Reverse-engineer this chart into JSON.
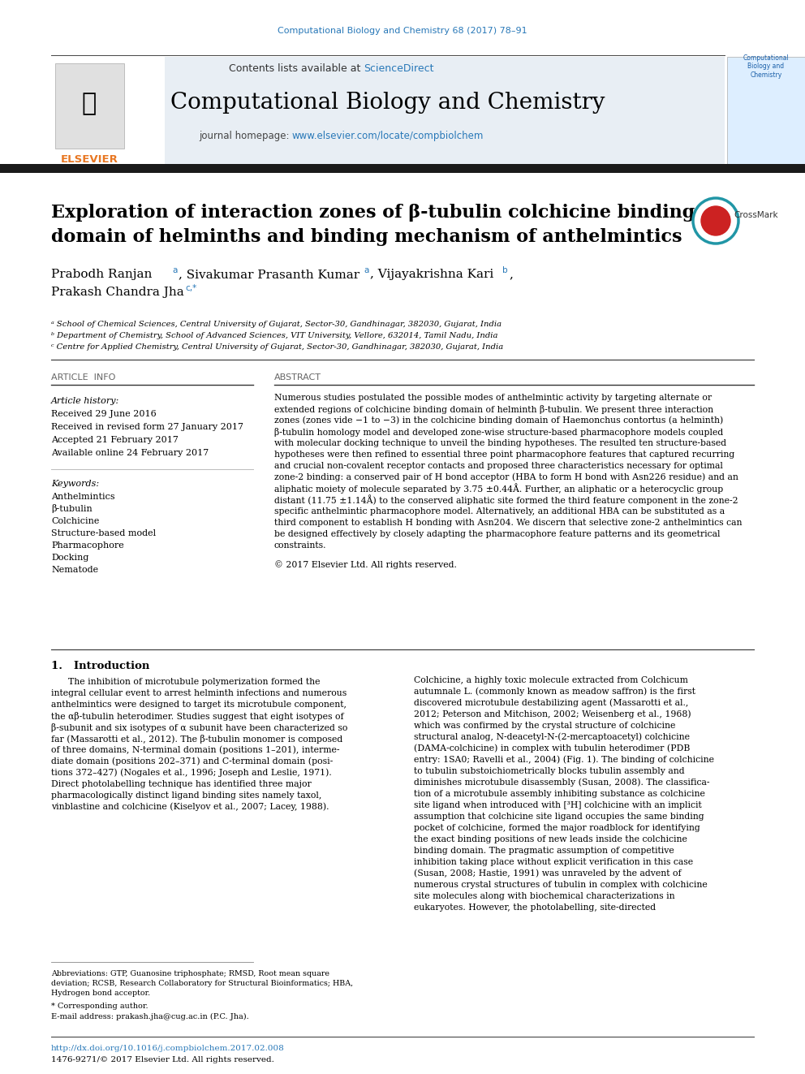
{
  "journal_ref": "Computational Biology and Chemistry 68 (2017) 78–91",
  "header_sciencedirect": "ScienceDirect",
  "journal_title": "Computational Biology and Chemistry",
  "journal_homepage_link": "www.elsevier.com/locate/compbiolchem",
  "article_title_line1": "Exploration of interaction zones of β-tubulin colchicine binding",
  "article_title_line2": "domain of helminths and binding mechanism of anthelmintics",
  "affil_a": "ᵃ School of Chemical Sciences, Central University of Gujarat, Sector-30, Gandhinagar, 382030, Gujarat, India",
  "affil_b": "ᵇ Department of Chemistry, School of Advanced Sciences, VIT University, Vellore, 632014, Tamil Nadu, India",
  "affil_c": "ᶜ Centre for Applied Chemistry, Central University of Gujarat, Sector-30, Gandhinagar, 382030, Gujarat, India",
  "section_article_info": "ARTICLE  INFO",
  "section_abstract": "ABSTRACT",
  "article_history_label": "Article history:",
  "received": "Received 29 June 2016",
  "revised": "Received in revised form 27 January 2017",
  "accepted": "Accepted 21 February 2017",
  "available": "Available online 24 February 2017",
  "keywords_label": "Keywords:",
  "keywords": [
    "Anthelmintics",
    "β-tubulin",
    "Colchicine",
    "Structure-based model",
    "Pharmacophore",
    "Docking",
    "Nematode"
  ],
  "abstract_text_lines": [
    "Numerous studies postulated the possible modes of anthelmintic activity by targeting alternate or",
    "extended regions of colchicine binding domain of helminth β-tubulin. We present three interaction",
    "zones (zones vide −1 to −3) in the colchicine binding domain of Haemonchus contortus (a helminth)",
    "β-tubulin homology model and developed zone-wise structure-based pharmacophore models coupled",
    "with molecular docking technique to unveil the binding hypotheses. The resulted ten structure-based",
    "hypotheses were then refined to essential three point pharmacophore features that captured recurring",
    "and crucial non-covalent receptor contacts and proposed three characteristics necessary for optimal",
    "zone-2 binding: a conserved pair of H bond acceptor (HBA to form H bond with Asn226 residue) and an",
    "aliphatic moiety of molecule separated by 3.75 ±0.44Å. Further, an aliphatic or a heterocyclic group",
    "distant (11.75 ±1.14Å) to the conserved aliphatic site formed the third feature component in the zone-2",
    "specific anthelmintic pharmacophore model. Alternatively, an additional HBA can be substituted as a",
    "third component to establish H bonding with Asn204. We discern that selective zone-2 anthelmintics can",
    "be designed effectively by closely adapting the pharmacophore feature patterns and its geometrical",
    "constraints."
  ],
  "copyright": "© 2017 Elsevier Ltd. All rights reserved.",
  "intro_heading": "1.   Introduction",
  "intro_left_lines": [
    "      The inhibition of microtubule polymerization formed the",
    "integral cellular event to arrest helminth infections and numerous",
    "anthelmintics were designed to target its microtubule component,",
    "the αβ-tubulin heterodimer. Studies suggest that eight isotypes of",
    "β-subunit and six isotypes of α subunit have been characterized so",
    "far (Massarotti et al., 2012). The β-tubulin monomer is composed",
    "of three domains, N-terminal domain (positions 1–201), interme-",
    "diate domain (positions 202–371) and C-terminal domain (posi-",
    "tions 372–427) (Nogales et al., 1996; Joseph and Leslie, 1971).",
    "Direct photolabelling technique has identified three major",
    "pharmacologically distinct ligand binding sites namely taxol,",
    "vinblastine and colchicine (Kiselyov et al., 2007; Lacey, 1988)."
  ],
  "intro_right_lines": [
    "Colchicine, a highly toxic molecule extracted from Colchicum",
    "autumnale L. (commonly known as meadow saffron) is the first",
    "discovered microtubule destabilizing agent (Massarotti et al.,",
    "2012; Peterson and Mitchison, 2002; Weisenberg et al., 1968)",
    "which was confirmed by the crystal structure of colchicine",
    "structural analog, N-deacetyl-N-(2-mercaptoacetyl) colchicine",
    "(DAMA-colchicine) in complex with tubulin heterodimer (PDB",
    "entry: 1SA0; Ravelli et al., 2004) (Fig. 1). The binding of colchicine",
    "to tubulin substoichiometrically blocks tubulin assembly and",
    "diminishes microtubule disassembly (Susan, 2008). The classifica-",
    "tion of a microtubule assembly inhibiting substance as colchicine",
    "site ligand when introduced with [³H] colchicine with an implicit",
    "assumption that colchicine site ligand occupies the same binding",
    "pocket of colchicine, formed the major roadblock for identifying",
    "the exact binding positions of new leads inside the colchicine",
    "binding domain. The pragmatic assumption of competitive",
    "inhibition taking place without explicit verification in this case",
    "(Susan, 2008; Hastie, 1991) was unraveled by the advent of",
    "numerous crystal structures of tubulin in complex with colchicine",
    "site molecules along with biochemical characterizations in",
    "eukaryotes. However, the photolabelling, site-directed"
  ],
  "footnote_abbrev_lines": [
    "Abbreviations: GTP, Guanosine triphosphate; RMSD, Root mean square",
    "deviation; RCSB, Research Collaboratory for Structural Bioinformatics; HBA,",
    "Hydrogen bond acceptor."
  ],
  "footnote_corresponding": "* Corresponding author.",
  "footnote_email": "E-mail address: prakash.jha@cug.ac.in (P.C. Jha).",
  "footer_doi": "http://dx.doi.org/10.1016/j.compbiolchem.2017.02.008",
  "footer_issn": "1476-9271/© 2017 Elsevier Ltd. All rights reserved.",
  "bg_color": "#ffffff",
  "header_bg": "#e8eef4",
  "black_bar_color": "#1a1a1a",
  "blue_link_color": "#2878b8",
  "orange_elsevier": "#e87722",
  "title_color": "#000000",
  "text_color": "#000000",
  "section_header_color": "#666666"
}
